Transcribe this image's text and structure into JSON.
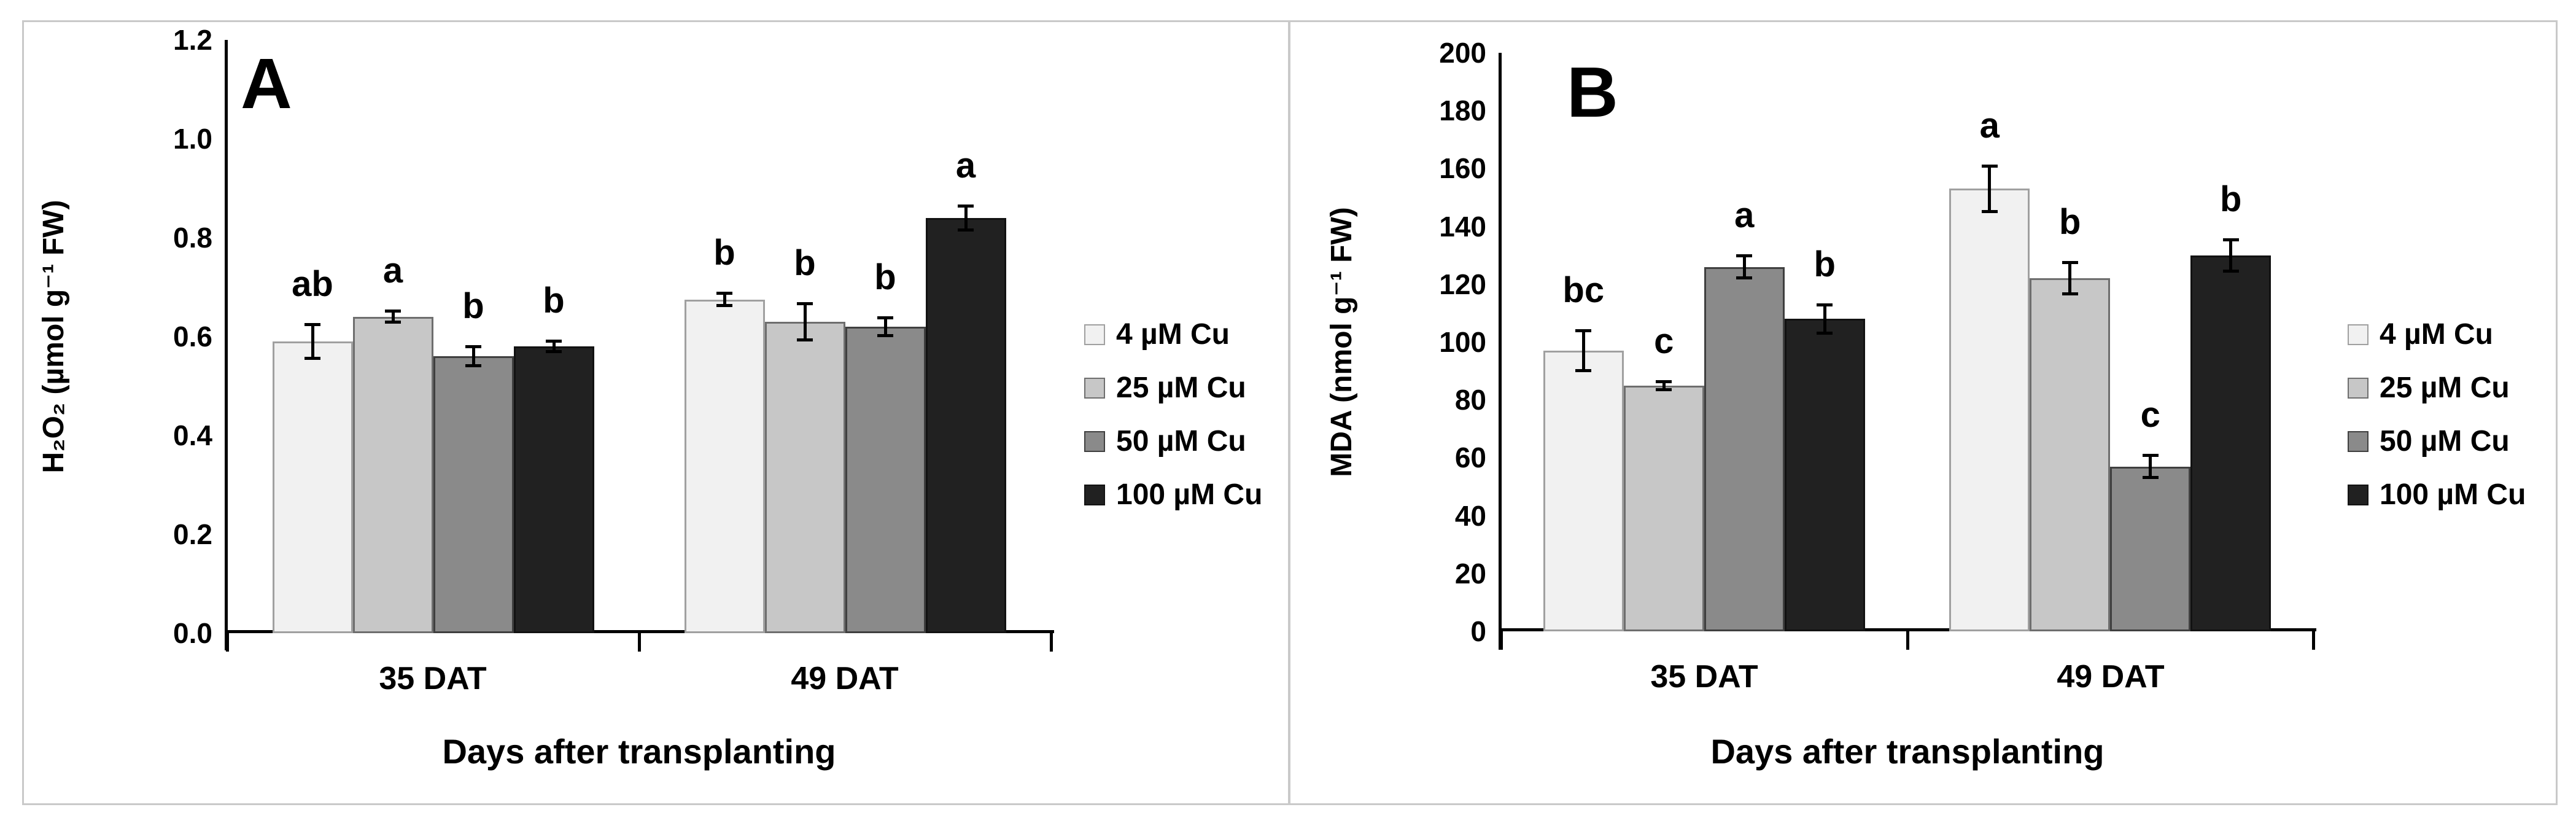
{
  "figure": {
    "background": "#ffffff",
    "frame_color": "#c9c9c9"
  },
  "colors": {
    "axis": "#000000",
    "error_bar": "#000000",
    "text": "#000000"
  },
  "series_styles": [
    {
      "name": "4 µM Cu",
      "fill": "#f1f1f1",
      "border": "#a0a0a0"
    },
    {
      "name": "25 µM Cu",
      "fill": "#c7c7c7",
      "border": "#6e6e6e"
    },
    {
      "name": "50 µM Cu",
      "fill": "#8a8a8a",
      "border": "#3f3f3f"
    },
    {
      "name": "100 µM Cu",
      "fill": "#212121",
      "border": "#121212"
    }
  ],
  "chart_data": [
    {
      "id": "A",
      "type": "bar",
      "panel_label": "A",
      "ylabel": "H₂O₂ (µmol g⁻¹ FW)",
      "xlabel": "Days after transplanting",
      "ylim": [
        0,
        1.2
      ],
      "ytick_labels": [
        "0.0",
        "0.2",
        "0.4",
        "0.6",
        "0.8",
        "1.0",
        "1.2"
      ],
      "categories": [
        "35 DAT",
        "49 DAT"
      ],
      "grid": false,
      "legend_position": "right",
      "series": [
        {
          "name": "4 µM Cu",
          "values": [
            0.59,
            0.675
          ],
          "errors": [
            0.035,
            0.013
          ],
          "letters": [
            "ab",
            "b"
          ]
        },
        {
          "name": "25 µM Cu",
          "values": [
            0.64,
            0.63
          ],
          "errors": [
            0.012,
            0.037
          ],
          "letters": [
            "a",
            "b"
          ]
        },
        {
          "name": "50 µM Cu",
          "values": [
            0.56,
            0.62
          ],
          "errors": [
            0.02,
            0.019
          ],
          "letters": [
            "b",
            "b"
          ]
        },
        {
          "name": "100 µM Cu",
          "values": [
            0.58,
            0.84
          ],
          "errors": [
            0.011,
            0.025
          ],
          "letters": [
            "b",
            "a"
          ]
        }
      ]
    },
    {
      "id": "B",
      "type": "bar",
      "panel_label": "B",
      "ylabel": "MDA (nmol g⁻¹ FW)",
      "xlabel": "Days after transplanting",
      "ylim": [
        0,
        200
      ],
      "ytick_labels": [
        "0",
        "20",
        "40",
        "60",
        "80",
        "100",
        "120",
        "140",
        "160",
        "180",
        "200"
      ],
      "categories": [
        "35 DAT",
        "49 DAT"
      ],
      "grid": false,
      "legend_position": "right",
      "series": [
        {
          "name": "4 µM Cu",
          "values": [
            97,
            153
          ],
          "errors": [
            7,
            8
          ],
          "letters": [
            "bc",
            "a"
          ]
        },
        {
          "name": "25 µM Cu",
          "values": [
            85,
            122
          ],
          "errors": [
            1.5,
            5.5
          ],
          "letters": [
            "c",
            "b"
          ]
        },
        {
          "name": "50 µM Cu",
          "values": [
            126,
            57
          ],
          "errors": [
            4,
            4
          ],
          "letters": [
            "a",
            "c"
          ]
        },
        {
          "name": "100 µM Cu",
          "values": [
            108,
            130
          ],
          "errors": [
            5,
            5.5
          ],
          "letters": [
            "b",
            "b"
          ]
        }
      ]
    }
  ]
}
